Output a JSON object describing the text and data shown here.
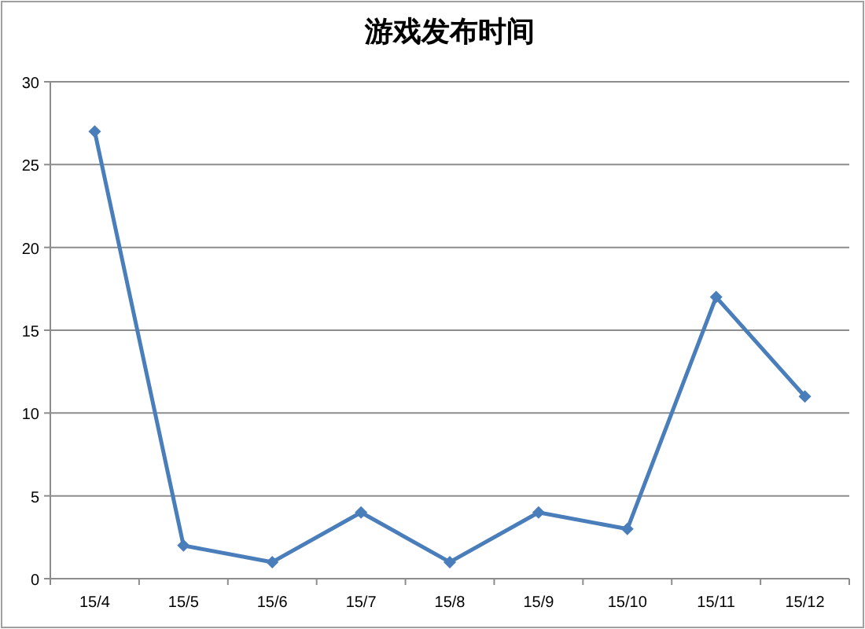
{
  "chart_data": {
    "type": "line",
    "title": "游戏发布时间",
    "categories": [
      "15/4",
      "15/5",
      "15/6",
      "15/7",
      "15/8",
      "15/9",
      "15/10",
      "15/11",
      "15/12"
    ],
    "series": [
      {
        "color": "#4a7ebb",
        "values": [
          27,
          2,
          1,
          4,
          1,
          4,
          3,
          17,
          11
        ]
      }
    ],
    "ylim": [
      0,
      30
    ],
    "yticks": [
      0,
      5,
      10,
      15,
      20,
      25,
      30
    ],
    "grid": "y",
    "marker": "diamond",
    "line_style": "solid"
  }
}
